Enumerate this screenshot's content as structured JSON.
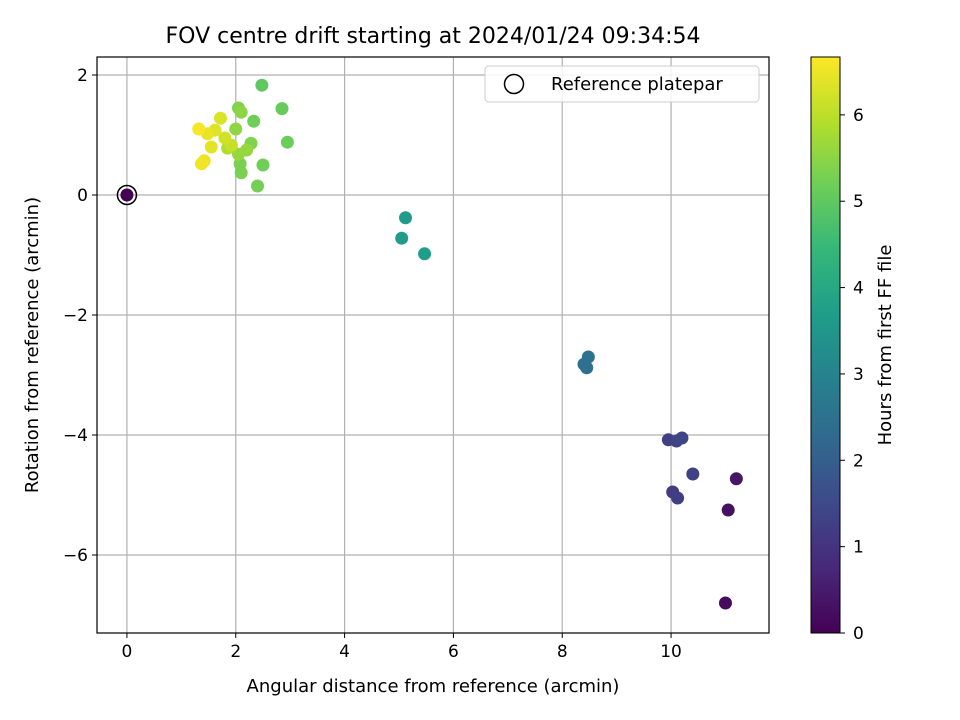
{
  "chart_data": {
    "type": "scatter",
    "title": "FOV centre drift starting at 2024/01/24 09:34:54",
    "xlabel": "Angular distance from reference (arcmin)",
    "ylabel": "Rotation from reference (arcmin)",
    "xlim": [
      -0.55,
      11.8
    ],
    "ylim": [
      -7.3,
      2.3
    ],
    "x_ticks": [
      0,
      2,
      4,
      6,
      8,
      10
    ],
    "y_ticks": [
      -6,
      -4,
      -2,
      0,
      2
    ],
    "grid": true,
    "legend": {
      "placement": "top-right",
      "entries": [
        "Reference platepar"
      ]
    },
    "colorbar": {
      "label": "Hours from first FF file",
      "range": [
        0,
        6.67
      ],
      "ticks": [
        0,
        1,
        2,
        3,
        4,
        5,
        6
      ],
      "colormap": [
        "#440154",
        "#482878",
        "#3e4989",
        "#31688e",
        "#26828e",
        "#1f9e89",
        "#35b779",
        "#6ece58",
        "#b5de2b",
        "#fde725"
      ]
    },
    "reference_point": {
      "x": 0,
      "y": 0,
      "hours": 0
    },
    "points": [
      {
        "x": 0,
        "y": 0,
        "hours": 0
      },
      {
        "x": 11.0,
        "y": -6.8,
        "hours": 0.2
      },
      {
        "x": 11.05,
        "y": -5.25,
        "hours": 0.3
      },
      {
        "x": 11.2,
        "y": -4.73,
        "hours": 0.4
      },
      {
        "x": 10.03,
        "y": -4.95,
        "hours": 1.2
      },
      {
        "x": 10.12,
        "y": -5.05,
        "hours": 1.25
      },
      {
        "x": 10.4,
        "y": -4.65,
        "hours": 1.3
      },
      {
        "x": 9.95,
        "y": -4.08,
        "hours": 1.3
      },
      {
        "x": 10.1,
        "y": -4.1,
        "hours": 1.35
      },
      {
        "x": 10.2,
        "y": -4.05,
        "hours": 1.4
      },
      {
        "x": 8.45,
        "y": -2.88,
        "hours": 2.4
      },
      {
        "x": 8.4,
        "y": -2.82,
        "hours": 2.45
      },
      {
        "x": 8.48,
        "y": -2.7,
        "hours": 2.5
      },
      {
        "x": 5.12,
        "y": -0.38,
        "hours": 3.6
      },
      {
        "x": 5.05,
        "y": -0.72,
        "hours": 3.65
      },
      {
        "x": 5.47,
        "y": -0.98,
        "hours": 3.7
      },
      {
        "x": 2.48,
        "y": 1.83,
        "hours": 5.0
      },
      {
        "x": 2.85,
        "y": 1.44,
        "hours": 5.1
      },
      {
        "x": 2.95,
        "y": 0.88,
        "hours": 5.15
      },
      {
        "x": 2.33,
        "y": 1.23,
        "hours": 5.2
      },
      {
        "x": 2.5,
        "y": 0.5,
        "hours": 5.2
      },
      {
        "x": 2.4,
        "y": 0.15,
        "hours": 5.25
      },
      {
        "x": 2.1,
        "y": 0.37,
        "hours": 5.3
      },
      {
        "x": 2.08,
        "y": 0.52,
        "hours": 5.3
      },
      {
        "x": 2.28,
        "y": 0.86,
        "hours": 5.35
      },
      {
        "x": 2.05,
        "y": 1.45,
        "hours": 5.4
      },
      {
        "x": 2.1,
        "y": 1.38,
        "hours": 5.5
      },
      {
        "x": 2.0,
        "y": 1.1,
        "hours": 5.55
      },
      {
        "x": 2.05,
        "y": 0.68,
        "hours": 5.6
      },
      {
        "x": 2.2,
        "y": 0.75,
        "hours": 5.6
      },
      {
        "x": 1.85,
        "y": 0.78,
        "hours": 5.9
      },
      {
        "x": 1.92,
        "y": 0.83,
        "hours": 6.1
      },
      {
        "x": 1.8,
        "y": 0.95,
        "hours": 6.2
      },
      {
        "x": 1.72,
        "y": 1.28,
        "hours": 6.3
      },
      {
        "x": 1.62,
        "y": 1.08,
        "hours": 6.35
      },
      {
        "x": 1.55,
        "y": 0.8,
        "hours": 6.4
      },
      {
        "x": 1.48,
        "y": 1.02,
        "hours": 6.45
      },
      {
        "x": 1.42,
        "y": 0.57,
        "hours": 6.5
      },
      {
        "x": 1.37,
        "y": 0.52,
        "hours": 6.55
      },
      {
        "x": 1.32,
        "y": 1.1,
        "hours": 6.6
      }
    ]
  }
}
